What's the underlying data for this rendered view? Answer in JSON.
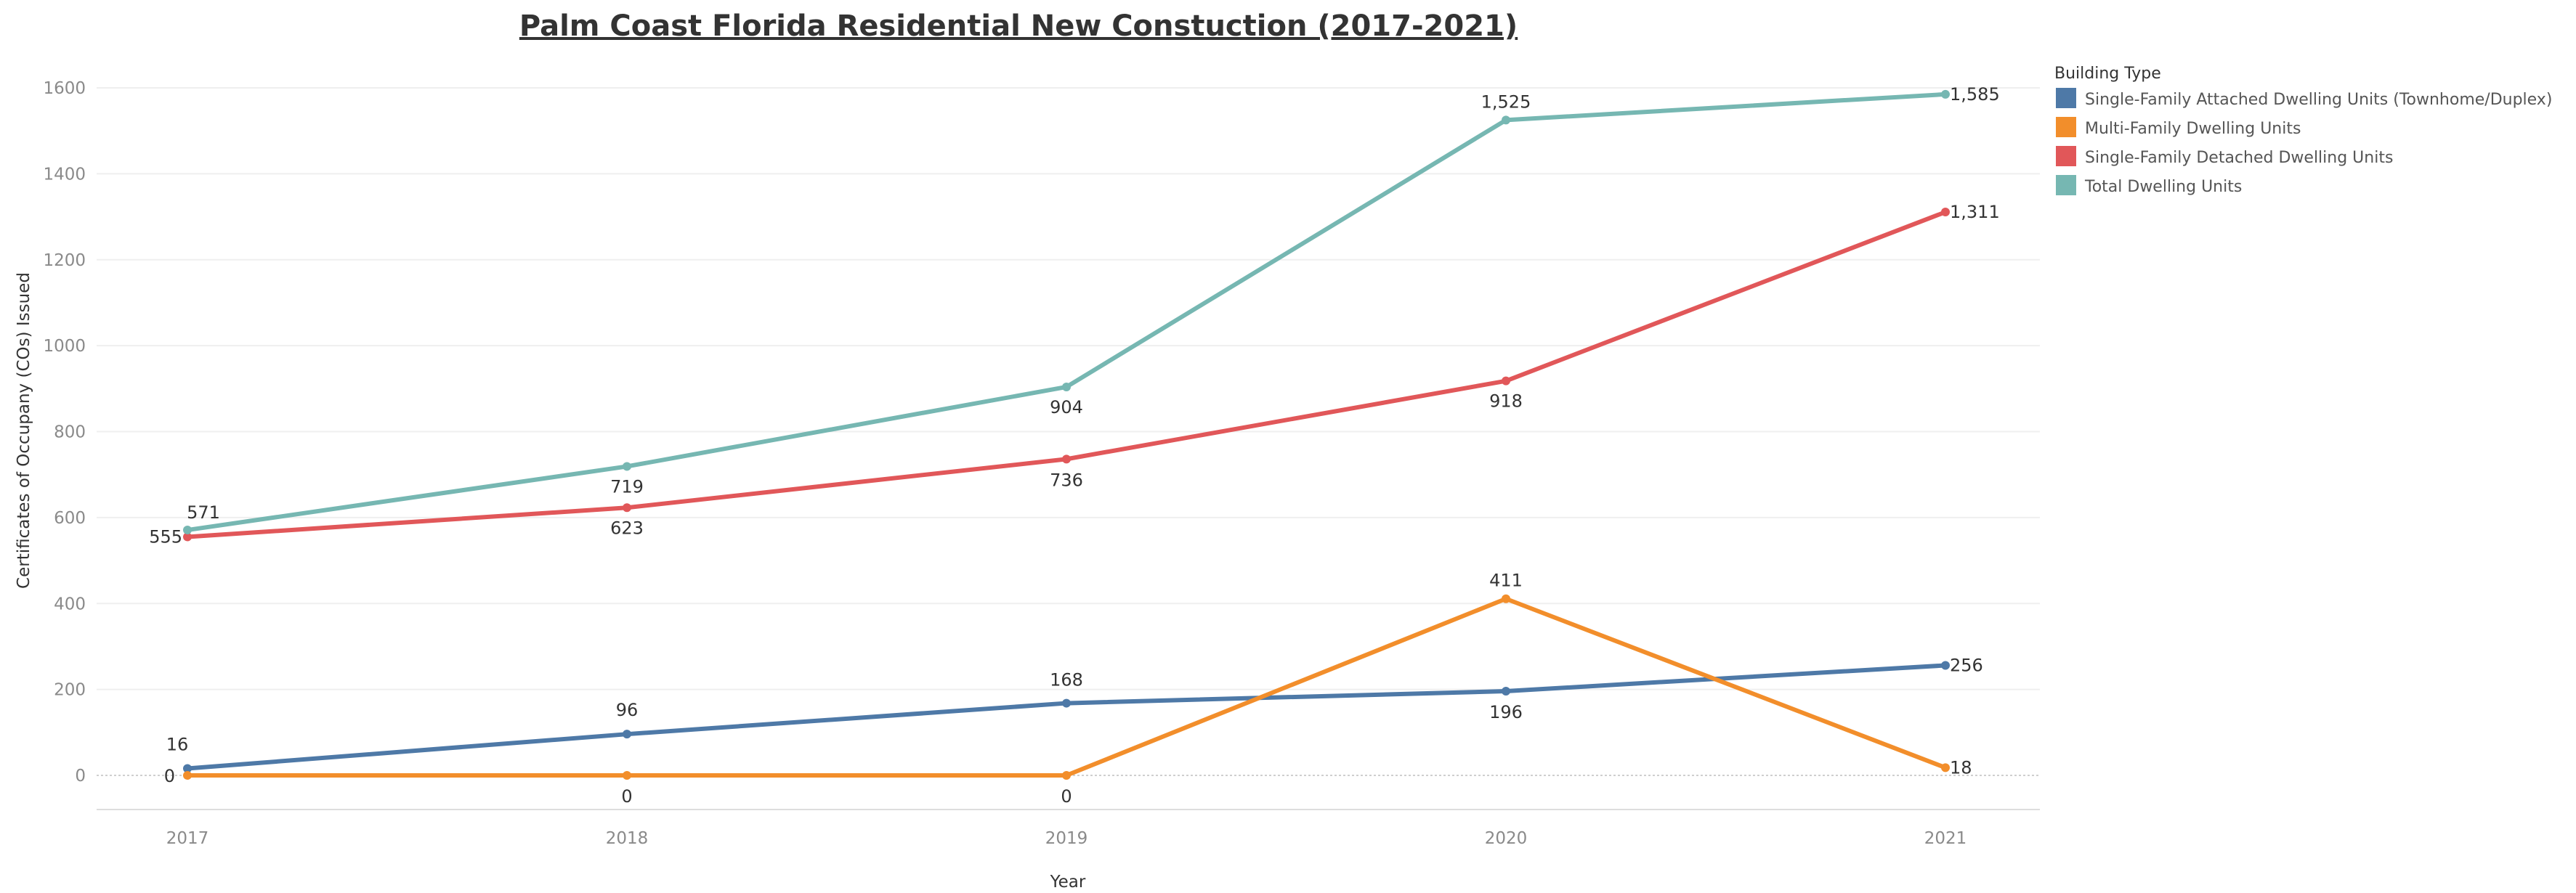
{
  "chart_data": {
    "type": "line",
    "title": "Palm Coast Florida Residential New Constuction (2017-2021)",
    "xlabel": "Year",
    "ylabel": "Certificates of Occupany (COs) Issued",
    "x": [
      "2017",
      "2018",
      "2019",
      "2020",
      "2021"
    ],
    "ylim": [
      -80,
      1700
    ],
    "yticks": [
      0,
      200,
      400,
      600,
      800,
      1000,
      1200,
      1400,
      1600
    ],
    "ytick_labels": [
      "0",
      "200",
      "400",
      "600",
      "800",
      "1000",
      "1200",
      "1400",
      "1600"
    ],
    "grid": true,
    "legend": {
      "title": "Building Type",
      "position": "top-right"
    },
    "series": [
      {
        "name": "Single-Family Attached Dwelling Units (Townhome/Duplex)",
        "color": "#4e79a7",
        "values": [
          16,
          96,
          168,
          196,
          256
        ],
        "labels": [
          "16",
          "96",
          "168",
          "196",
          "256"
        ]
      },
      {
        "name": "Multi-Family Dwelling Units",
        "color": "#f28e2b",
        "values": [
          0,
          0,
          0,
          411,
          18
        ],
        "labels": [
          "0",
          "0",
          "0",
          "411",
          "18"
        ]
      },
      {
        "name": "Single-Family Detached Dwelling Units",
        "color": "#e15759",
        "values": [
          555,
          623,
          736,
          918,
          1311
        ],
        "labels": [
          "555",
          "623",
          "736",
          "918",
          "1,311"
        ]
      },
      {
        "name": "Total Dwelling Units",
        "color": "#76b7b2",
        "values": [
          571,
          719,
          904,
          1525,
          1585
        ],
        "labels": [
          "571",
          "719",
          "904",
          "1,525",
          "1,585"
        ]
      }
    ]
  }
}
